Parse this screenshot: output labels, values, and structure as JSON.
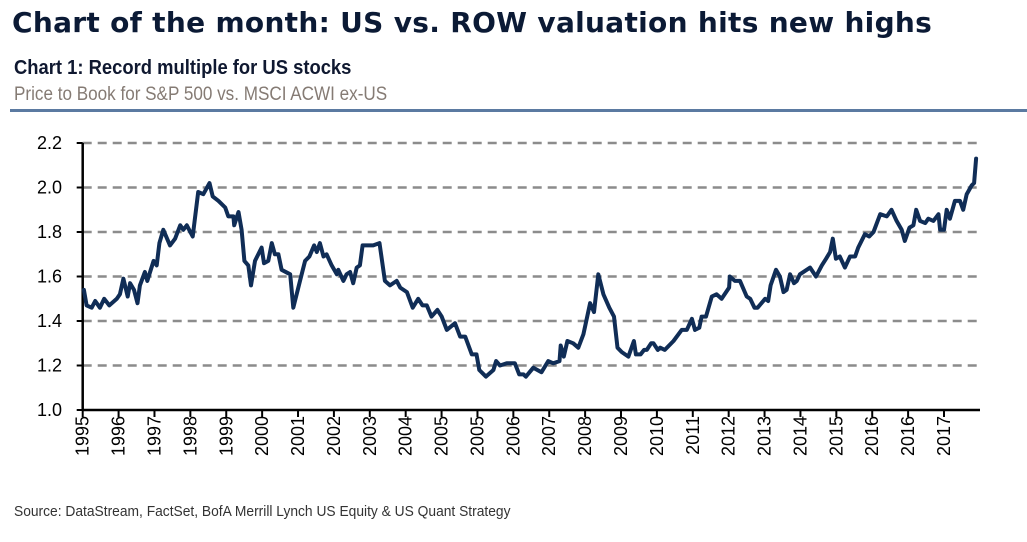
{
  "header": {
    "title": "Chart of the month: US vs. ROW valuation hits new highs",
    "chart_title": "Chart 1:  Record multiple for US stocks",
    "subtitle": "Price to Book for S&P 500 vs. MSCI ACWI ex-US"
  },
  "source": "Source:  DataStream, FactSet, BofA Merrill Lynch US Equity & US Quant Strategy",
  "chart_data": {
    "type": "line",
    "title": "Chart 1:  Record multiple for US stocks",
    "subtitle": "Price to Book for S&P 500 vs. MSCI ACWI ex-US",
    "xlabel": "",
    "ylabel": "",
    "ylim": [
      1.0,
      2.2
    ],
    "xlim": [
      1995.0,
      2017.92
    ],
    "yticks": [
      "1.0",
      "1.2",
      "1.4",
      "1.6",
      "1.8",
      "2.0",
      "2.2"
    ],
    "xtick_labels": [
      "1995",
      "1996",
      "1997",
      "1998",
      "1999",
      "2000",
      "2001",
      "2002",
      "2003",
      "2004",
      "2005",
      "2005",
      "2006",
      "2007",
      "2008",
      "2009",
      "2010",
      "2011",
      "2012",
      "2013",
      "2014",
      "2015",
      "2016",
      "2016",
      "2017"
    ],
    "grid": "horizontal dashed",
    "legend": "none",
    "line_color": "#102d56",
    "grid_color": "#8c8c8c",
    "series": [
      {
        "x": [
          1995.03,
          1995.1,
          1995.23,
          1995.32,
          1995.44,
          1995.55,
          1995.68,
          1995.87,
          1995.95,
          1996.04,
          1996.15,
          1996.21,
          1996.31,
          1996.4,
          1996.46,
          1996.59,
          1996.65,
          1996.81,
          1996.89,
          1996.96,
          1997.06,
          1997.23,
          1997.36,
          1997.49,
          1997.57,
          1997.66,
          1997.81,
          1997.95,
          1998.08,
          1998.24,
          1998.32,
          1998.47,
          1998.64,
          1998.72,
          1998.85,
          1998.87,
          1998.98,
          1999.06,
          1999.13,
          1999.23,
          1999.3,
          1999.4,
          1999.57,
          1999.63,
          1999.74,
          1999.83,
          1999.91,
          2000.0,
          2000.08,
          2000.3,
          2000.38,
          2000.55,
          2000.68,
          2000.79,
          2000.91,
          2000.98,
          2001.06,
          2001.15,
          2001.23,
          2001.36,
          2001.49,
          2001.53,
          2001.66,
          2001.74,
          2001.83,
          2001.91,
          2002.0,
          2002.08,
          2002.15,
          2002.25,
          2002.42,
          2002.58,
          2002.72,
          2002.85,
          2003.02,
          2003.11,
          2003.28,
          2003.43,
          2003.57,
          2003.68,
          2003.79,
          2003.91,
          2004.06,
          2004.17,
          2004.3,
          2004.51,
          2004.64,
          2004.77,
          2004.94,
          2005.06,
          2005.13,
          2005.3,
          2005.49,
          2005.56,
          2005.66,
          2005.83,
          2006.04,
          2006.15,
          2006.26,
          2006.32,
          2006.51,
          2006.72,
          2006.89,
          2007.02,
          2007.18,
          2007.21,
          2007.29,
          2007.38,
          2007.53,
          2007.66,
          2007.79,
          2007.96,
          2008.06,
          2008.17,
          2008.3,
          2008.45,
          2008.57,
          2008.66,
          2008.77,
          2008.94,
          2009.08,
          2009.13,
          2009.25,
          2009.34,
          2009.41,
          2009.52,
          2009.58,
          2009.69,
          2009.75,
          2009.87,
          2010.09,
          2010.3,
          2010.43,
          2010.56,
          2010.64,
          2010.75,
          2010.81,
          2010.92,
          2011.07,
          2011.19,
          2011.32,
          2011.51,
          2011.53,
          2011.66,
          2011.79,
          2011.96,
          2012.05,
          2012.16,
          2012.24,
          2012.43,
          2012.51,
          2012.57,
          2012.71,
          2012.81,
          2012.9,
          2012.98,
          2013.07,
          2013.17,
          2013.24,
          2013.32,
          2013.58,
          2013.73,
          2013.88,
          2013.99,
          2014.09,
          2014.16,
          2014.24,
          2014.34,
          2014.47,
          2014.6,
          2014.73,
          2014.81,
          2014.98,
          2015.09,
          2015.2,
          2015.37,
          2015.54,
          2015.66,
          2015.79,
          2015.92,
          2016.0,
          2016.12,
          2016.22,
          2016.29,
          2016.39,
          2016.52,
          2016.6,
          2016.73,
          2016.86,
          2016.9,
          2017.0,
          2017.07,
          2017.15,
          2017.28,
          2017.41,
          2017.49,
          2017.58,
          2017.71,
          2017.77,
          2017.82
        ],
        "values": [
          1.54,
          1.47,
          1.46,
          1.49,
          1.46,
          1.5,
          1.47,
          1.5,
          1.52,
          1.59,
          1.51,
          1.57,
          1.54,
          1.48,
          1.56,
          1.62,
          1.58,
          1.67,
          1.65,
          1.75,
          1.81,
          1.74,
          1.77,
          1.83,
          1.81,
          1.83,
          1.78,
          1.98,
          1.97,
          2.02,
          1.96,
          1.94,
          1.91,
          1.87,
          1.87,
          1.83,
          1.89,
          1.81,
          1.67,
          1.65,
          1.56,
          1.67,
          1.73,
          1.66,
          1.67,
          1.75,
          1.7,
          1.7,
          1.63,
          1.61,
          1.46,
          1.58,
          1.67,
          1.69,
          1.74,
          1.71,
          1.75,
          1.69,
          1.7,
          1.65,
          1.61,
          1.63,
          1.58,
          1.61,
          1.62,
          1.57,
          1.64,
          1.65,
          1.74,
          1.74,
          1.74,
          1.75,
          1.58,
          1.56,
          1.58,
          1.55,
          1.53,
          1.46,
          1.5,
          1.47,
          1.47,
          1.42,
          1.45,
          1.42,
          1.36,
          1.39,
          1.33,
          1.33,
          1.25,
          1.25,
          1.18,
          1.15,
          1.18,
          1.22,
          1.2,
          1.21,
          1.21,
          1.16,
          1.16,
          1.15,
          1.19,
          1.17,
          1.22,
          1.21,
          1.22,
          1.29,
          1.24,
          1.31,
          1.3,
          1.28,
          1.34,
          1.48,
          1.44,
          1.61,
          1.52,
          1.46,
          1.42,
          1.28,
          1.26,
          1.24,
          1.31,
          1.25,
          1.25,
          1.27,
          1.27,
          1.3,
          1.3,
          1.27,
          1.28,
          1.27,
          1.31,
          1.36,
          1.36,
          1.41,
          1.36,
          1.37,
          1.42,
          1.42,
          1.51,
          1.52,
          1.5,
          1.55,
          1.6,
          1.58,
          1.58,
          1.51,
          1.5,
          1.46,
          1.46,
          1.5,
          1.49,
          1.56,
          1.63,
          1.6,
          1.53,
          1.54,
          1.61,
          1.57,
          1.58,
          1.61,
          1.64,
          1.6,
          1.65,
          1.68,
          1.71,
          1.77,
          1.68,
          1.69,
          1.64,
          1.69,
          1.69,
          1.73,
          1.79,
          1.78,
          1.8,
          1.88,
          1.87,
          1.9,
          1.85,
          1.81,
          1.76,
          1.82,
          1.83,
          1.9,
          1.85,
          1.84,
          1.86,
          1.85,
          1.88,
          1.81,
          1.81,
          1.9,
          1.86,
          1.94,
          1.94,
          1.9,
          1.97,
          2.01,
          2.02,
          2.13
        ]
      }
    ]
  }
}
